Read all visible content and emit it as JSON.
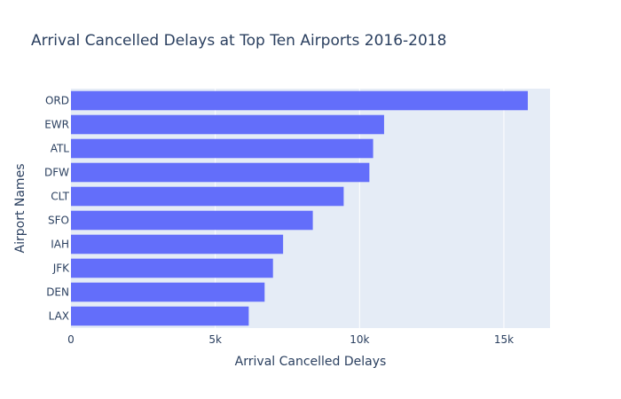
{
  "chart_data": {
    "type": "bar",
    "orientation": "horizontal",
    "title": "Arrival Cancelled Delays at Top Ten Airports 2016-2018",
    "xlabel": "Arrival Cancelled Delays",
    "ylabel": "Airport Names",
    "categories": [
      "ORD",
      "EWR",
      "ATL",
      "DFW",
      "CLT",
      "SFO",
      "IAH",
      "JFK",
      "DEN",
      "LAX"
    ],
    "values": [
      15830,
      10850,
      10470,
      10340,
      9450,
      8380,
      7350,
      7000,
      6710,
      6160
    ],
    "xlim": [
      0,
      16600
    ],
    "xticks": [
      0,
      5000,
      10000,
      15000
    ],
    "xtick_labels": [
      "0",
      "5k",
      "10k",
      "15k"
    ],
    "grid": true,
    "colors": {
      "bar": "#636efa",
      "plot_bg": "#e5ecf6",
      "grid": "#ffffff",
      "text": "#2a3f5f"
    }
  }
}
